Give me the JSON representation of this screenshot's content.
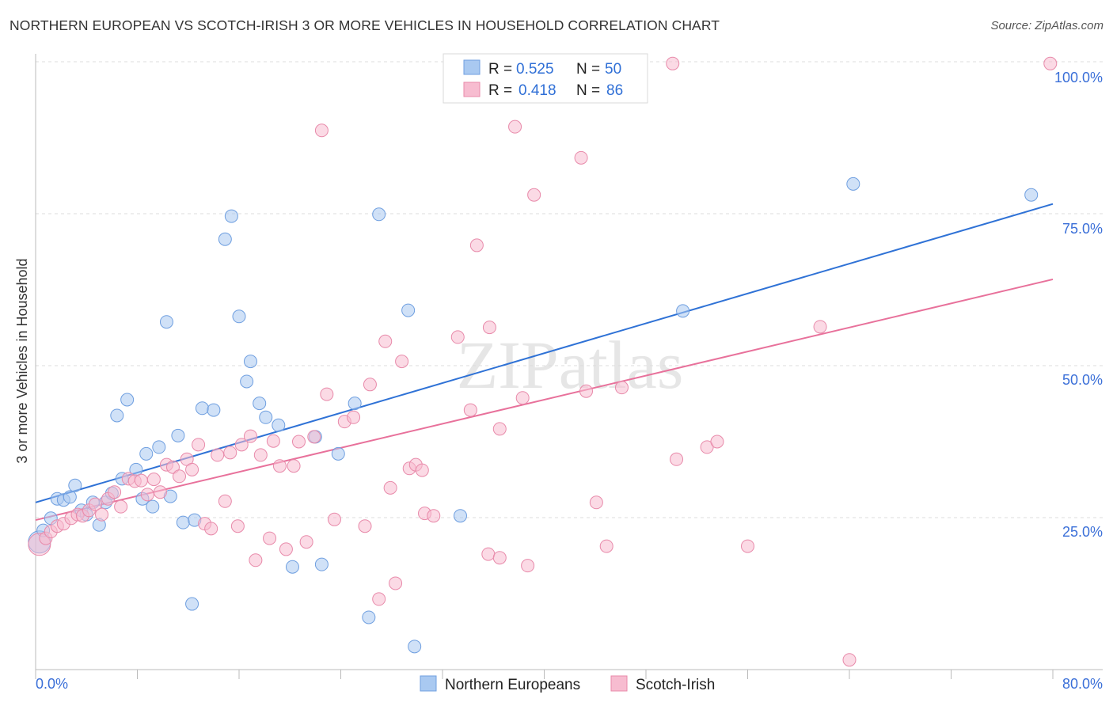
{
  "title": "NORTHERN EUROPEAN VS SCOTCH-IRISH 3 OR MORE VEHICLES IN HOUSEHOLD CORRELATION CHART",
  "source": "Source: ZipAtlas.com",
  "watermark": "ZIPatlas",
  "colors": {
    "blue_fill": "#a9c9f1",
    "blue_stroke": "#6f9fe0",
    "blue_line": "#2f72d6",
    "pink_fill": "#f7bcd0",
    "pink_stroke": "#e88aaa",
    "pink_line": "#e8719b",
    "label": "#3a6fd8"
  },
  "chart_data": {
    "type": "scatter",
    "title": "Northern European vs Scotch-Irish 3 or more Vehicles in Household Correlation Chart",
    "xlabel": "",
    "ylabel": "3 or more Vehicles in Household",
    "xlim": [
      0,
      80
    ],
    "ylim": [
      0,
      100
    ],
    "x_tick_labels": [
      "0.0%",
      "80.0%"
    ],
    "y_tick_labels": [
      "100.0%",
      "75.0%",
      "50.0%",
      "25.0%"
    ],
    "y_ticks": [
      100,
      75,
      50,
      25
    ],
    "grid": true,
    "legend_top": [
      {
        "r_label": "R =",
        "r": "0.525",
        "n_label": "N =",
        "n": "50"
      },
      {
        "r_label": "R =",
        "r": "0.418",
        "n_label": "N =",
        "n": "86"
      }
    ],
    "series": [
      {
        "name": "Northern Europeans",
        "trend": [
          [
            0,
            27.5
          ],
          [
            80,
            76.6
          ]
        ],
        "points": [
          [
            0.3,
            21.0
          ],
          [
            0.6,
            22.9
          ],
          [
            1.2,
            24.9
          ],
          [
            1.7,
            28.1
          ],
          [
            2.2,
            27.9
          ],
          [
            2.7,
            28.4
          ],
          [
            3.1,
            30.3
          ],
          [
            3.6,
            26.2
          ],
          [
            4.0,
            25.5
          ],
          [
            4.5,
            27.5
          ],
          [
            5.0,
            23.8
          ],
          [
            5.5,
            27.5
          ],
          [
            6.0,
            29.0
          ],
          [
            6.4,
            41.8
          ],
          [
            6.8,
            31.4
          ],
          [
            7.2,
            44.4
          ],
          [
            7.9,
            32.9
          ],
          [
            8.4,
            28.1
          ],
          [
            8.7,
            35.5
          ],
          [
            9.2,
            26.8
          ],
          [
            9.7,
            36.6
          ],
          [
            10.3,
            57.2
          ],
          [
            10.6,
            28.5
          ],
          [
            11.2,
            38.5
          ],
          [
            11.6,
            24.2
          ],
          [
            12.3,
            10.8
          ],
          [
            12.5,
            24.6
          ],
          [
            13.1,
            43.0
          ],
          [
            14.0,
            42.7
          ],
          [
            14.9,
            70.8
          ],
          [
            15.4,
            74.6
          ],
          [
            16.0,
            58.1
          ],
          [
            16.6,
            47.4
          ],
          [
            16.9,
            50.7
          ],
          [
            17.6,
            43.8
          ],
          [
            18.1,
            41.5
          ],
          [
            19.1,
            40.2
          ],
          [
            20.2,
            16.9
          ],
          [
            22.0,
            38.3
          ],
          [
            22.5,
            17.3
          ],
          [
            23.8,
            35.5
          ],
          [
            25.1,
            43.8
          ],
          [
            26.2,
            8.6
          ],
          [
            27.0,
            74.9
          ],
          [
            29.3,
            59.1
          ],
          [
            29.8,
            3.8
          ],
          [
            33.4,
            25.3
          ],
          [
            50.9,
            59.0
          ],
          [
            64.3,
            79.9
          ],
          [
            78.3,
            78.1
          ]
        ]
      },
      {
        "name": "Scotch-Irish",
        "trend": [
          [
            0,
            24.6
          ],
          [
            80,
            64.2
          ]
        ],
        "points": [
          [
            0.3,
            20.6
          ],
          [
            0.8,
            21.6
          ],
          [
            1.2,
            22.7
          ],
          [
            1.7,
            23.6
          ],
          [
            2.2,
            24.0
          ],
          [
            2.8,
            24.9
          ],
          [
            3.3,
            25.5
          ],
          [
            3.7,
            25.3
          ],
          [
            4.2,
            26.2
          ],
          [
            4.7,
            27.2
          ],
          [
            5.2,
            25.5
          ],
          [
            5.7,
            28.1
          ],
          [
            6.2,
            29.2
          ],
          [
            6.7,
            26.8
          ],
          [
            7.3,
            31.4
          ],
          [
            7.8,
            31.0
          ],
          [
            8.3,
            31.1
          ],
          [
            8.8,
            28.8
          ],
          [
            9.3,
            31.3
          ],
          [
            9.8,
            29.2
          ],
          [
            10.3,
            33.7
          ],
          [
            10.8,
            33.3
          ],
          [
            11.3,
            31.8
          ],
          [
            11.9,
            34.6
          ],
          [
            12.3,
            32.9
          ],
          [
            12.8,
            37.0
          ],
          [
            13.3,
            24.0
          ],
          [
            13.8,
            23.2
          ],
          [
            14.3,
            35.3
          ],
          [
            14.9,
            27.7
          ],
          [
            15.3,
            35.7
          ],
          [
            15.9,
            23.6
          ],
          [
            16.2,
            37.0
          ],
          [
            16.9,
            38.4
          ],
          [
            17.3,
            18.0
          ],
          [
            17.7,
            35.3
          ],
          [
            18.4,
            21.6
          ],
          [
            18.7,
            37.6
          ],
          [
            19.2,
            33.5
          ],
          [
            19.7,
            19.8
          ],
          [
            20.3,
            33.5
          ],
          [
            20.7,
            37.5
          ],
          [
            21.3,
            21.0
          ],
          [
            21.9,
            38.3
          ],
          [
            22.5,
            88.7
          ],
          [
            22.9,
            45.3
          ],
          [
            23.5,
            24.7
          ],
          [
            24.3,
            40.8
          ],
          [
            25.0,
            41.5
          ],
          [
            25.9,
            23.6
          ],
          [
            26.3,
            46.9
          ],
          [
            27.0,
            11.6
          ],
          [
            27.5,
            54.0
          ],
          [
            27.9,
            29.9
          ],
          [
            28.3,
            14.2
          ],
          [
            28.8,
            50.7
          ],
          [
            29.4,
            33.1
          ],
          [
            29.9,
            33.7
          ],
          [
            30.4,
            32.8
          ],
          [
            30.6,
            25.7
          ],
          [
            31.3,
            25.3
          ],
          [
            33.2,
            54.7
          ],
          [
            34.2,
            42.7
          ],
          [
            34.7,
            69.8
          ],
          [
            35.6,
            19.0
          ],
          [
            35.7,
            56.3
          ],
          [
            36.5,
            39.6
          ],
          [
            36.5,
            18.4
          ],
          [
            37.6,
            99.7
          ],
          [
            37.7,
            89.3
          ],
          [
            38.3,
            44.7
          ],
          [
            38.7,
            17.1
          ],
          [
            39.2,
            78.1
          ],
          [
            42.9,
            84.2
          ],
          [
            43.3,
            45.8
          ],
          [
            44.1,
            27.5
          ],
          [
            44.9,
            20.3
          ],
          [
            46.1,
            46.4
          ],
          [
            50.1,
            99.7
          ],
          [
            50.4,
            34.6
          ],
          [
            52.8,
            36.6
          ],
          [
            53.6,
            37.5
          ],
          [
            56.0,
            20.3
          ],
          [
            61.7,
            56.4
          ],
          [
            64.0,
            1.6
          ],
          [
            79.8,
            99.7
          ]
        ]
      }
    ]
  }
}
